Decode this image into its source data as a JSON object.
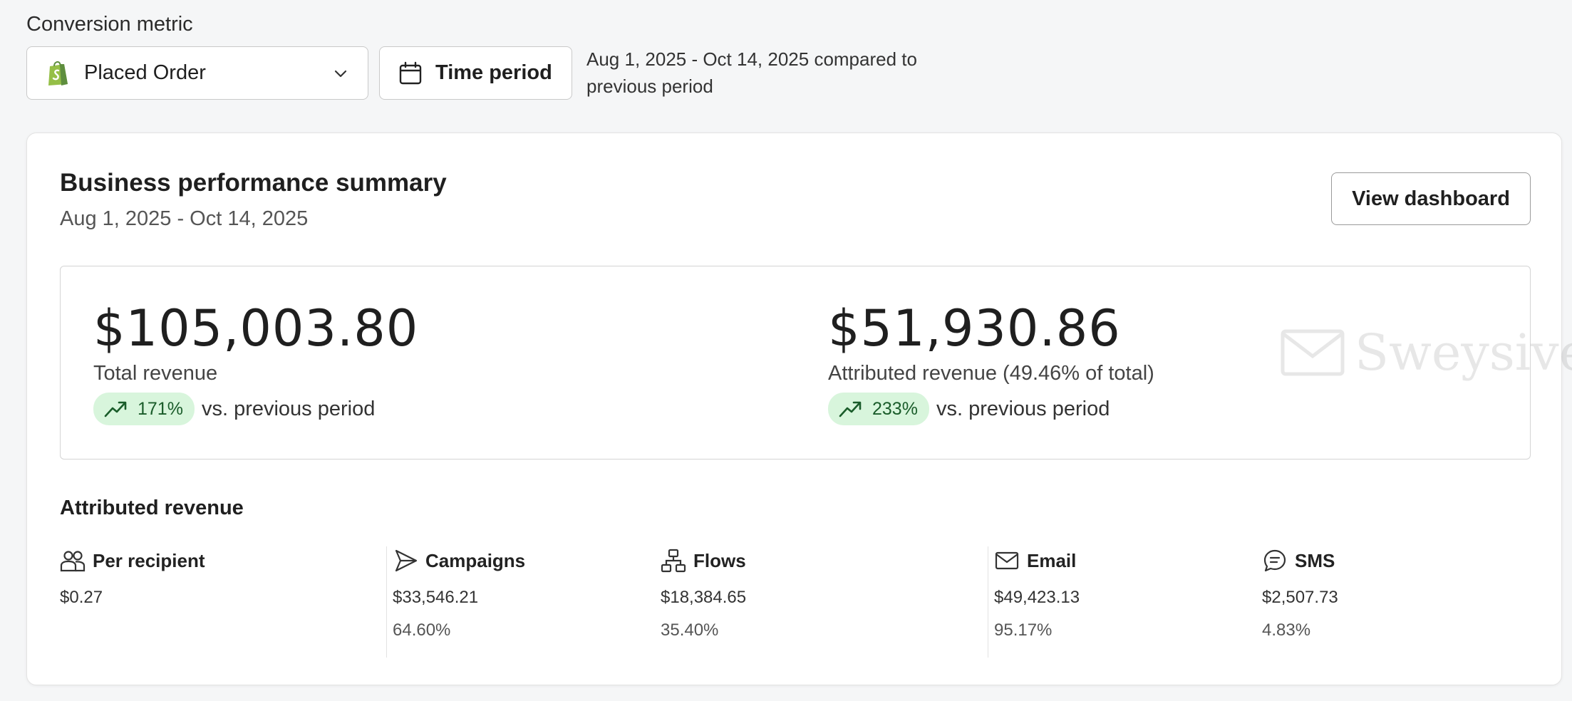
{
  "filters": {
    "label": "Conversion metric",
    "metric_value": "Placed Order",
    "time_button": "Time period",
    "range_text": "Aug 1, 2025 - Oct 14, 2025 compared to previous period"
  },
  "summary": {
    "title": "Business performance summary",
    "date_range": "Aug 1, 2025 - Oct 14, 2025",
    "view_button": "View dashboard",
    "watermark": "Sweysive",
    "total": {
      "value": "$105,003.80",
      "label": "Total revenue",
      "change": "171%",
      "compare": "vs. previous period"
    },
    "attributed": {
      "value": "$51,930.86",
      "label": "Attributed revenue (49.46% of total)",
      "change": "233%",
      "compare": "vs. previous period"
    }
  },
  "attributed_section": {
    "title": "Attributed revenue",
    "stats": [
      {
        "icon": "users-icon",
        "name": "Per recipient",
        "value": "$0.27",
        "share": ""
      },
      {
        "icon": "send-icon",
        "name": "Campaigns",
        "value": "$33,546.21",
        "share": "64.60%"
      },
      {
        "icon": "flow-icon",
        "name": "Flows",
        "value": "$18,384.65",
        "share": "35.40%"
      },
      {
        "icon": "mail-icon",
        "name": "Email",
        "value": "$49,423.13",
        "share": "95.17%"
      },
      {
        "icon": "chat-icon",
        "name": "SMS",
        "value": "$2,507.73",
        "share": "4.83%"
      }
    ]
  },
  "colors": {
    "trend_bg": "#d8f5dc",
    "trend_fg": "#1a5c2a",
    "shopify_green": "#95bf47"
  }
}
